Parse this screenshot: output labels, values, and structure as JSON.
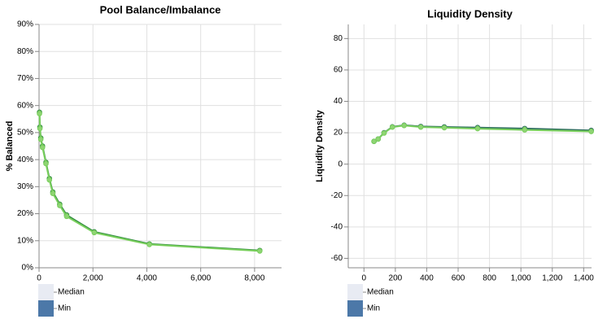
{
  "chart_data": [
    {
      "type": "line",
      "title": "Pool Balance/Imbalance",
      "y_label": "% Balanced",
      "x": [
        16,
        32,
        64,
        128,
        256,
        384,
        512,
        768,
        1024,
        2048,
        4096,
        8192
      ],
      "series": [
        {
          "name": "Median",
          "color": "#2f8a3e",
          "swatch_color": "#e8ebf3",
          "values": [
            57.5,
            52,
            48,
            45,
            39,
            33,
            28,
            23.5,
            19.5,
            13.3,
            8.8,
            6.4
          ]
        },
        {
          "name": "Min",
          "color": "#79cf5c",
          "swatch_color": "#4c78a8",
          "values": [
            57,
            51.5,
            47.5,
            44.5,
            38.5,
            32.5,
            27.5,
            23,
            19,
            13,
            8.6,
            6.2
          ]
        }
      ],
      "xlim": [
        0,
        9000
      ],
      "xticks": [
        0,
        {
          "value": 2000,
          "label": "2,000"
        },
        {
          "value": 4000,
          "label": "4,000"
        },
        {
          "value": 6000,
          "label": "6,000"
        },
        {
          "value": 8000,
          "label": "8,000"
        }
      ],
      "ylim": [
        0,
        90
      ],
      "yticks": [
        {
          "value": 0,
          "label": "0%"
        },
        {
          "value": 10,
          "label": "10%"
        },
        {
          "value": 20,
          "label": "20%"
        },
        {
          "value": 30,
          "label": "30%"
        },
        {
          "value": 40,
          "label": "40%"
        },
        {
          "value": 50,
          "label": "50%"
        },
        {
          "value": 60,
          "label": "60%"
        },
        {
          "value": 70,
          "label": "70%"
        },
        {
          "value": 80,
          "label": "80%"
        },
        {
          "value": 90,
          "label": "90%"
        }
      ],
      "grid": true
    },
    {
      "type": "line",
      "title": "Liquidity Density",
      "y_label": "Liquidity Density",
      "x": [
        64,
        90.5,
        128,
        181,
        256,
        362,
        512,
        724,
        1024,
        1448
      ],
      "series": [
        {
          "name": "Median",
          "color": "#2f6f5e",
          "swatch_color": "#e8ebf3",
          "values": [
            14.5,
            16,
            20,
            23.8,
            24.8,
            24,
            23.7,
            23.3,
            22.7,
            21.5
          ]
        },
        {
          "name": "Min",
          "color": "#79cf5c",
          "swatch_color": "#4c78a8",
          "values": [
            14.5,
            16,
            19.8,
            23.6,
            24.6,
            23.6,
            23.2,
            22.6,
            21.8,
            20.8
          ]
        }
      ],
      "xlim": [
        -100,
        1450
      ],
      "xticks": [
        0,
        200,
        400,
        600,
        800,
        {
          "value": 1000,
          "label": "1,000"
        },
        {
          "value": 1200,
          "label": "1,200"
        },
        {
          "value": 1400,
          "label": "1,400"
        }
      ],
      "ylim": [
        -66,
        89
      ],
      "yticks": [
        -60,
        -40,
        -20,
        0,
        20,
        40,
        60,
        80
      ],
      "grid": true
    }
  ]
}
